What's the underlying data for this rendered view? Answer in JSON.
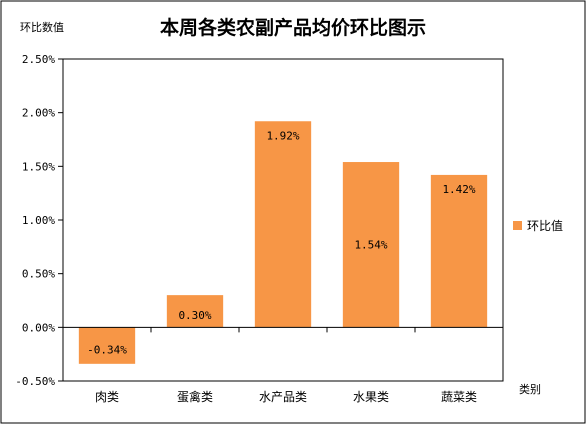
{
  "chart_data": {
    "type": "bar",
    "title": "本周各类农副产品均价环比图示",
    "ylabel": "环比数值",
    "xlabel": "类别",
    "categories": [
      "肉类",
      "蛋禽类",
      "水产品类",
      "水果类",
      "蔬菜类"
    ],
    "series": [
      {
        "name": "环比值",
        "values": [
          -0.34,
          0.3,
          1.92,
          1.54,
          1.42
        ],
        "labels": [
          "-0.34%",
          "0.30%",
          "1.92%",
          "1.54%",
          "1.42%"
        ]
      }
    ],
    "ylim": [
      -0.5,
      2.5
    ],
    "yticks": [
      {
        "value": 2.5,
        "label": "2.50%"
      },
      {
        "value": 2.0,
        "label": "2.00%"
      },
      {
        "value": 1.5,
        "label": "1.50%"
      },
      {
        "value": 1.0,
        "label": "1.00%"
      },
      {
        "value": 0.5,
        "label": "0.50%"
      },
      {
        "value": 0.0,
        "label": "0.00%"
      },
      {
        "value": -0.5,
        "label": "-0.50%"
      }
    ],
    "grid": false,
    "legend_position": "right",
    "colors": {
      "bar": "#F79646",
      "frame": "#000000"
    }
  }
}
